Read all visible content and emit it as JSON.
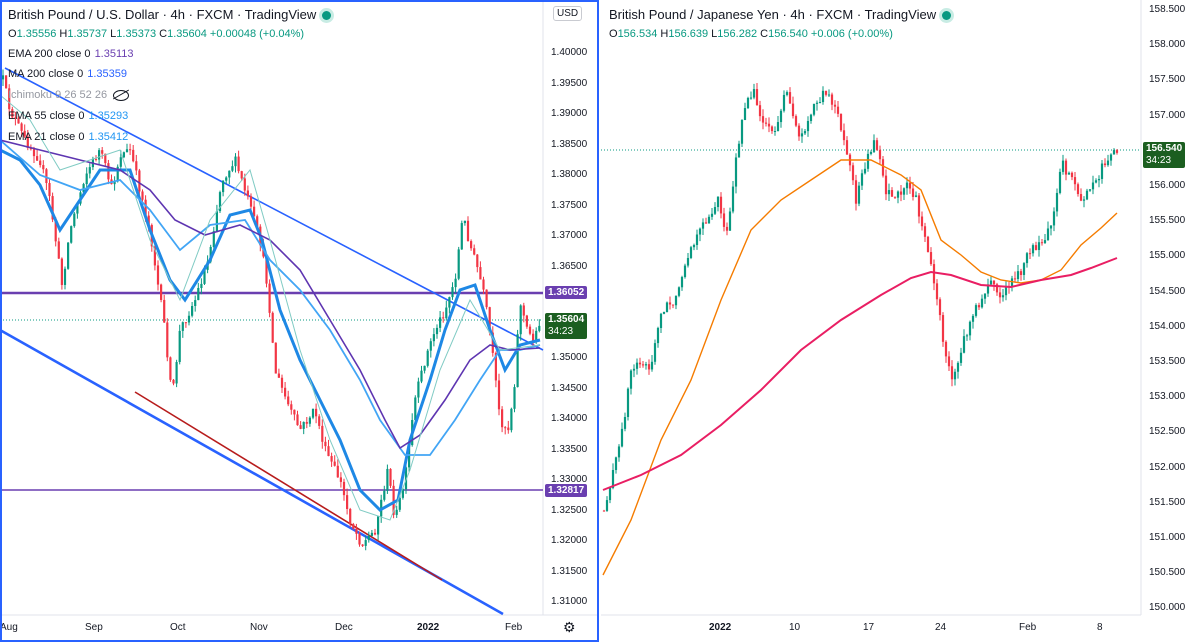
{
  "left_chart": {
    "title": "British Pound / U.S. Dollar · 4h · FXCM · TradingView",
    "ohlc": {
      "o_label": "O",
      "o": "1.35556",
      "h_label": "H",
      "h": "1.35737",
      "l_label": "L",
      "l": "1.35373",
      "c_label": "C",
      "c": "1.35604",
      "change": "+0.00048 (+0.04%)"
    },
    "indicators": [
      {
        "label": "EMA 200 close 0",
        "value": "1.35113",
        "color": "#6a3fb0"
      },
      {
        "label": "MA 200 close 0",
        "value": "1.35359",
        "color": "#2962ff"
      },
      {
        "label": "Ichimoku 9 26 52 26",
        "value": "",
        "color": "#131722"
      },
      {
        "label": "EMA 55 close 0",
        "value": "1.35293",
        "color": "#2196f3"
      },
      {
        "label": "EMA 21 close 0",
        "value": "1.35412",
        "color": "#2196f3"
      }
    ],
    "currency_button": "USD",
    "price_axis": [
      "1.40000",
      "1.39500",
      "1.39000",
      "1.38500",
      "1.38000",
      "1.37500",
      "1.37000",
      "1.36500",
      "1.36000",
      "1.35500",
      "1.35000",
      "1.34500",
      "1.34000",
      "1.33500",
      "1.33000",
      "1.32500",
      "1.32000",
      "1.31500",
      "1.31000"
    ],
    "time_axis": [
      "Aug",
      "Sep",
      "Oct",
      "Nov",
      "Dec",
      "2022",
      "Feb"
    ],
    "tags": {
      "upper_line": "1.36052",
      "lower_line": "1.32817",
      "last_price": "1.35604",
      "countdown": "34:23"
    },
    "colors": {
      "up": "#089981",
      "down": "#f23645",
      "hline": "#6a3fb0",
      "trend": "#2962ff",
      "support": "#b71c1c"
    }
  },
  "right_chart": {
    "title": "British Pound / Japanese Yen · 4h · FXCM · TradingView",
    "ohlc": {
      "o_label": "O",
      "o": "156.534",
      "h_label": "H",
      "h": "156.639",
      "l_label": "L",
      "l": "156.282",
      "c_label": "C",
      "c": "156.540",
      "change": "+0.006 (+0.00%)"
    },
    "price_axis": [
      "158.500",
      "158.000",
      "157.500",
      "157.000",
      "156.500",
      "156.000",
      "155.500",
      "155.000",
      "154.500",
      "154.000",
      "153.500",
      "153.000",
      "152.500",
      "152.000",
      "151.500",
      "151.000",
      "150.500",
      "150.000"
    ],
    "time_axis": [
      "2022",
      "10",
      "17",
      "24",
      "Feb",
      "8"
    ],
    "tags": {
      "last_price": "156.540",
      "countdown": "34:23"
    },
    "colors": {
      "ma_fast": "#f57c00",
      "ma_slow": "#e91e63"
    }
  }
}
